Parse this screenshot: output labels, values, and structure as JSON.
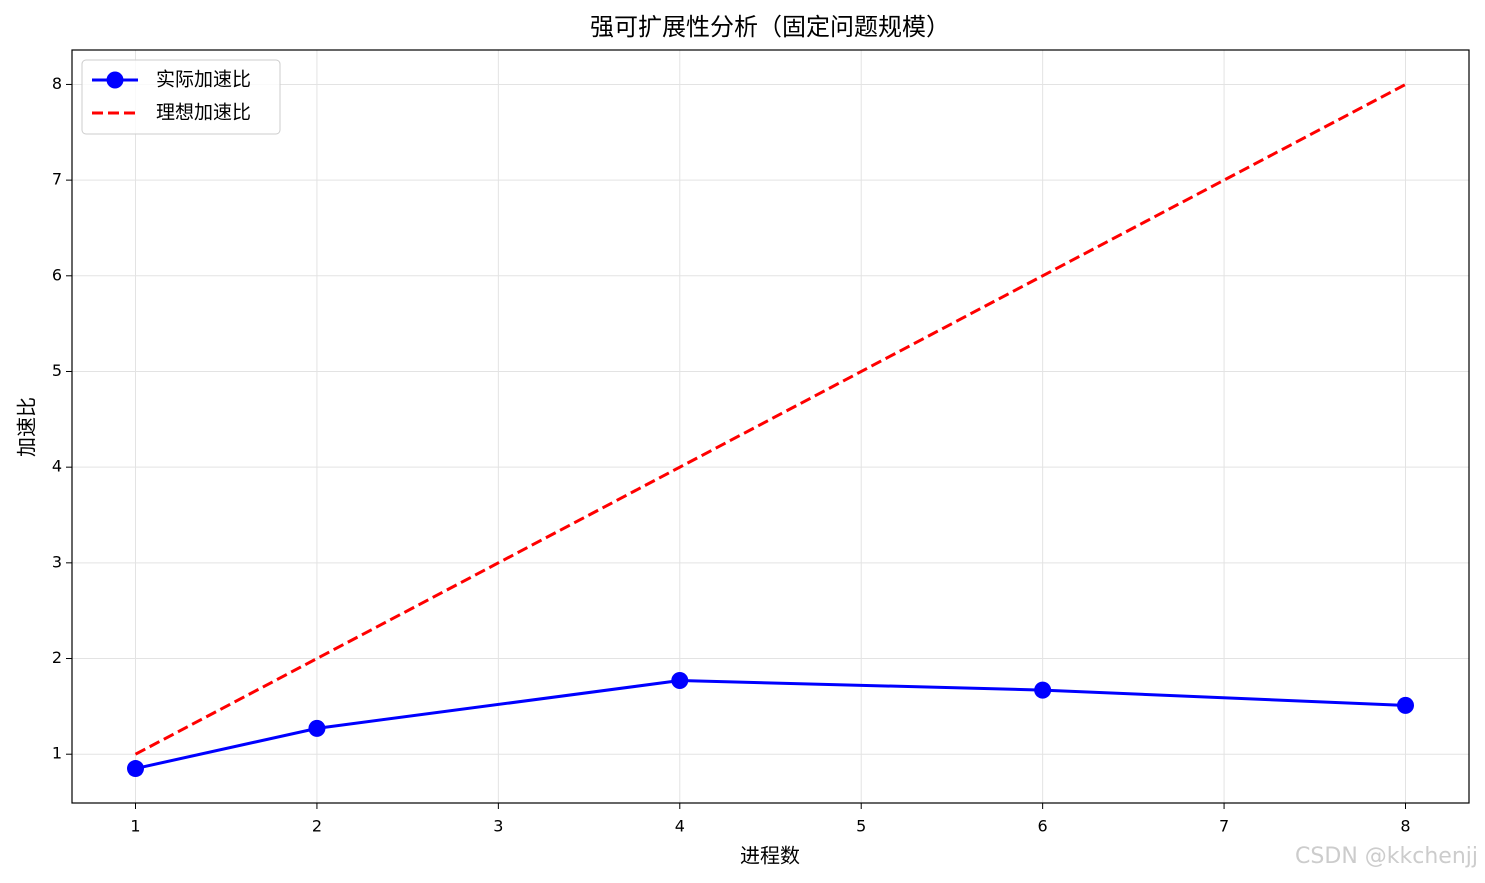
{
  "chart_data": {
    "type": "line",
    "title": "强可扩展性分析（固定问题规模）",
    "xlabel": "进程数",
    "ylabel": "加速比",
    "x": [
      1,
      2,
      4,
      6,
      8
    ],
    "series": [
      {
        "name": "实际加速比",
        "color": "#0000ff",
        "linestyle": "solid",
        "marker": true,
        "values": [
          0.85,
          1.27,
          1.77,
          1.67,
          1.51
        ]
      },
      {
        "name": "理想加速比",
        "color": "#ff0000",
        "linestyle": "dashed",
        "marker": false,
        "values": [
          1,
          2,
          4,
          6,
          8
        ]
      }
    ],
    "xlim": [
      0.65,
      8.35
    ],
    "xticks": [
      1,
      2,
      3,
      4,
      5,
      6,
      7,
      8
    ],
    "ylim": [
      0.49,
      8.36
    ],
    "yticks": [
      1,
      2,
      3,
      4,
      5,
      6,
      7,
      8
    ],
    "grid": true,
    "legend": "upper-left",
    "watermark": "CSDN @kkchenjj"
  }
}
